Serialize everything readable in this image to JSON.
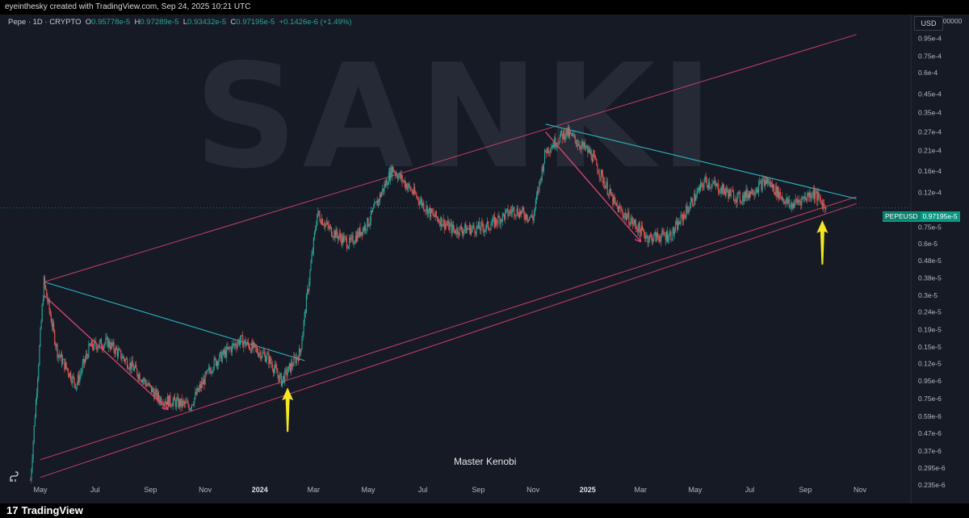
{
  "header": {
    "attribution": "eyeinthesky created with TradingView.com, Sep 24, 2025 10:21 UTC"
  },
  "legend": {
    "symbol": "Pepe · 1D · CRYPTO",
    "open_label": "O",
    "open": "0.95778e-5",
    "high_label": "H",
    "high": "0.97289e-5",
    "low_label": "L",
    "low": "0.93432e-5",
    "close_label": "C",
    "close": "0.97195e-5",
    "change": "+0.1426e-6 (+1.49%)"
  },
  "currency_button": "USD",
  "price_tag": {
    "symbol": "PEPEUSD",
    "value": "0.97195e-5"
  },
  "watermark_text": "SANKI",
  "caption": "Master Kenobi",
  "footer": {
    "brand": "TradingView"
  },
  "colors": {
    "background": "#161a25",
    "up_candle": "#26a69a",
    "down_candle": "#ef5350",
    "channel_line": "#e0466e",
    "trend_line": "#2bb6c4",
    "arrow_yellow": "#f5e623",
    "price_tag": "#089981"
  },
  "chart_data": {
    "type": "candlestick",
    "scale": "log",
    "y_axis_ticks": [
      "0.0001200000",
      "0.95e-4",
      "0.75e-4",
      "0.6e-4",
      "0.45e-4",
      "0.35e-4",
      "0.27e-4",
      "0.21e-4",
      "0.16e-4",
      "0.12e-4",
      "0.75e-5",
      "0.6e-5",
      "0.48e-5",
      "0.38e-5",
      "0.3e-5",
      "0.24e-5",
      "0.19e-5",
      "0.15e-5",
      "0.12e-5",
      "0.95e-6",
      "0.75e-6",
      "0.59e-6",
      "0.47e-6",
      "0.37e-6",
      "0.295e-6",
      "0.235e-6"
    ],
    "x_axis_ticks": [
      "May",
      "Jul",
      "Sep",
      "Nov",
      "2024",
      "Mar",
      "May",
      "Jul",
      "Sep",
      "Nov",
      "2025",
      "Mar",
      "May",
      "Jul",
      "Sep",
      "Nov"
    ],
    "last_price": 9.7195e-06,
    "price_path": [
      [
        "2023-04-20",
        2.5e-07
      ],
      [
        "2023-05-05",
        3.6e-06
      ],
      [
        "2023-05-20",
        1.4e-06
      ],
      [
        "2023-06-10",
        9e-07
      ],
      [
        "2023-06-25",
        1.5e-06
      ],
      [
        "2023-07-15",
        1.6e-06
      ],
      [
        "2023-08-15",
        1.1e-06
      ],
      [
        "2023-09-10",
        7.5e-07
      ],
      [
        "2023-10-15",
        6.8e-07
      ],
      [
        "2023-11-10",
        1.2e-06
      ],
      [
        "2023-12-10",
        1.65e-06
      ],
      [
        "2024-01-10",
        1.3e-06
      ],
      [
        "2024-01-25",
        9.5e-07
      ],
      [
        "2024-02-15",
        1.4e-06
      ],
      [
        "2024-03-05",
        9e-06
      ],
      [
        "2024-03-20",
        7.2e-06
      ],
      [
        "2024-04-10",
        6e-06
      ],
      [
        "2024-05-01",
        8e-06
      ],
      [
        "2024-05-28",
        1.65e-05
      ],
      [
        "2024-06-20",
        1.2e-05
      ],
      [
        "2024-07-10",
        9e-06
      ],
      [
        "2024-08-05",
        7.2e-06
      ],
      [
        "2024-09-10",
        7.5e-06
      ],
      [
        "2024-10-10",
        9.5e-06
      ],
      [
        "2024-11-01",
        8.5e-06
      ],
      [
        "2024-11-15",
        2.1e-05
      ],
      [
        "2024-12-08",
        2.7e-05
      ],
      [
        "2025-01-05",
        2e-05
      ],
      [
        "2025-02-01",
        1e-05
      ],
      [
        "2025-03-10",
        6.5e-06
      ],
      [
        "2025-04-05",
        6.8e-06
      ],
      [
        "2025-05-12",
        1.4e-05
      ],
      [
        "2025-06-20",
        1.1e-05
      ],
      [
        "2025-07-20",
        1.4e-05
      ],
      [
        "2025-08-15",
        1e-05
      ],
      [
        "2025-09-10",
        1.2e-05
      ],
      [
        "2025-09-24",
        9.7195e-06
      ]
    ],
    "trend_lines": [
      {
        "kind": "channel",
        "from": [
          "2023-05-01",
          2.6e-07
        ],
        "to": [
          "2025-10-28",
          1.03e-05
        ]
      },
      {
        "kind": "channel",
        "from": [
          "2023-05-05",
          3.6e-06
        ],
        "to": [
          "2025-10-28",
          0.0001
        ]
      },
      {
        "kind": "channel",
        "from": [
          "2023-05-01",
          3.3e-07
        ],
        "to": [
          "2025-10-28",
          1.13e-05
        ]
      },
      {
        "kind": "resistance",
        "from": [
          "2023-05-05",
          3.6e-06
        ],
        "to": [
          "2024-02-20",
          1.25e-06
        ]
      },
      {
        "kind": "resistance",
        "from": [
          "2024-11-15",
          3e-05
        ],
        "to": [
          "2025-10-28",
          1.1e-05
        ]
      }
    ],
    "down_arrows": [
      {
        "from": [
          "2023-05-05",
          3e-06
        ],
        "to": [
          "2023-09-20",
          6.5e-07
        ]
      },
      {
        "from": [
          "2024-11-15",
          2.7e-05
        ],
        "to": [
          "2025-03-01",
          6.2e-06
        ]
      }
    ],
    "highlight_arrows": [
      {
        "date": "2024-02-01",
        "value": 9.5e-07
      },
      {
        "date": "2025-09-20",
        "value": 9e-06
      }
    ]
  }
}
